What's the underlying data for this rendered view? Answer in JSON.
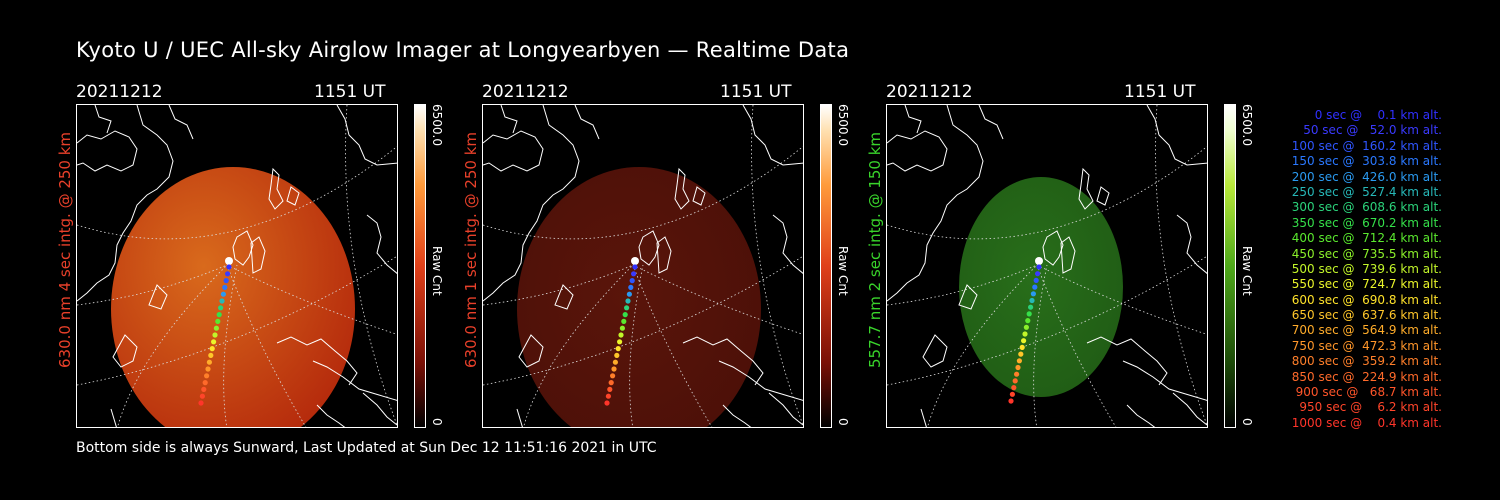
{
  "title": "Kyoto U / UEC All-sky Airglow Imager at Longyearbyen — Realtime Data",
  "panels": [
    {
      "date": "20211212",
      "time": "1151 UT",
      "label": "630.0 nm 4 sec intg. @ 250 km",
      "label_color": "#e8402a",
      "colorbar_max": "6500.0",
      "colorbar_min": "0",
      "colorbar_unit": "Raw Cnt",
      "image_color": "#b52a0c",
      "image_glow": "#d96a1c"
    },
    {
      "date": "20211212",
      "time": "1151 UT",
      "label": "630.0 nm 1 sec intg. @ 250 km",
      "label_color": "#e8402a",
      "colorbar_max": "6500.0",
      "colorbar_min": "0",
      "colorbar_unit": "Raw Cnt",
      "image_color": "#4a0f08",
      "image_glow": "#5a150a"
    },
    {
      "date": "20211212",
      "time": "1151 UT",
      "label": "557.7 nm 2 sec intg. @ 150 km",
      "label_color": "#39d42b",
      "colorbar_max": "6500.0",
      "colorbar_min": "0",
      "colorbar_unit": "Raw Cnt",
      "image_color": "#1f5a14",
      "image_glow": "#286e1a"
    }
  ],
  "footer": "Bottom side is always Sunward, Last Updated at Sun Dec 12 11:51:16 2021 in UTC",
  "legend": [
    {
      "text": "0 sec @    0.1 km alt.",
      "color": "#3030ff"
    },
    {
      "text": "50 sec @   52.0 km alt.",
      "color": "#3a3aff"
    },
    {
      "text": "100 sec @  160.2 km alt.",
      "color": "#2f56ff"
    },
    {
      "text": "150 sec @  303.8 km alt.",
      "color": "#2a78ff"
    },
    {
      "text": "200 sec @  426.0 km alt.",
      "color": "#2a9af0"
    },
    {
      "text": "250 sec @  527.4 km alt.",
      "color": "#27b8b8"
    },
    {
      "text": "300 sec @  608.6 km alt.",
      "color": "#2bd27a"
    },
    {
      "text": "350 sec @  670.2 km alt.",
      "color": "#35e04a"
    },
    {
      "text": "400 sec @  712.4 km alt.",
      "color": "#5ae82e"
    },
    {
      "text": "450 sec @  735.5 km alt.",
      "color": "#8cf02a"
    },
    {
      "text": "500 sec @  739.6 km alt.",
      "color": "#c2f52a"
    },
    {
      "text": "550 sec @  724.7 km alt.",
      "color": "#eaf52a"
    },
    {
      "text": "600 sec @  690.8 km alt.",
      "color": "#ffe22a"
    },
    {
      "text": "650 sec @  637.6 km alt.",
      "color": "#ffc62a"
    },
    {
      "text": "700 sec @  564.9 km alt.",
      "color": "#ffac2a"
    },
    {
      "text": "750 sec @  472.3 km alt.",
      "color": "#ff962a"
    },
    {
      "text": "800 sec @  359.2 km alt.",
      "color": "#ff7f2a"
    },
    {
      "text": "850 sec @  224.9 km alt.",
      "color": "#ff6a2a"
    },
    {
      "text": "900 sec @   68.7 km alt.",
      "color": "#ff552a"
    },
    {
      "text": "950 sec @    6.2 km alt.",
      "color": "#ff452a"
    },
    {
      "text": "1000 sec @    0.4 km alt.",
      "color": "#ff352a"
    }
  ]
}
